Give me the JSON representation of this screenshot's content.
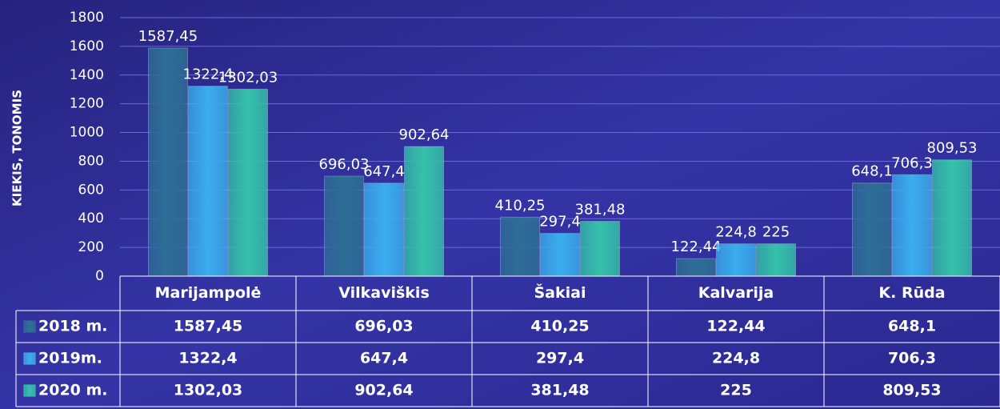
{
  "chart_data": {
    "type": "bar",
    "y_label": "KIEKIS, TONOMIS",
    "categories": [
      "Marijampolė",
      "Vilkaviškis",
      "Šakiai",
      "Kalvarija",
      "K. Rūda"
    ],
    "series": [
      {
        "name": "2018 m.",
        "color": "#2e6f96",
        "values": [
          1587.45,
          696.03,
          410.25,
          122.44,
          648.1
        ],
        "value_labels": [
          "1587,45",
          "696,03",
          "410,25",
          "122,44",
          "648,1"
        ]
      },
      {
        "name": "2019m.",
        "color": "#3aaeee",
        "values": [
          1322.4,
          647.4,
          297.4,
          224.8,
          706.3
        ],
        "value_labels": [
          "1322,4",
          "647,4",
          "297,4",
          "224,8",
          "706,3"
        ]
      },
      {
        "name": "2020 m.",
        "color": "#35c2aa",
        "values": [
          1302.03,
          902.64,
          381.48,
          225,
          809.53
        ],
        "value_labels": [
          "1302,03",
          "902,64",
          "381,48",
          "225",
          "809,53"
        ]
      }
    ],
    "ylim": [
      0,
      1800
    ],
    "yticks": [
      0,
      200,
      400,
      600,
      800,
      1000,
      1200,
      1400,
      1600,
      1800
    ],
    "grid": true
  }
}
